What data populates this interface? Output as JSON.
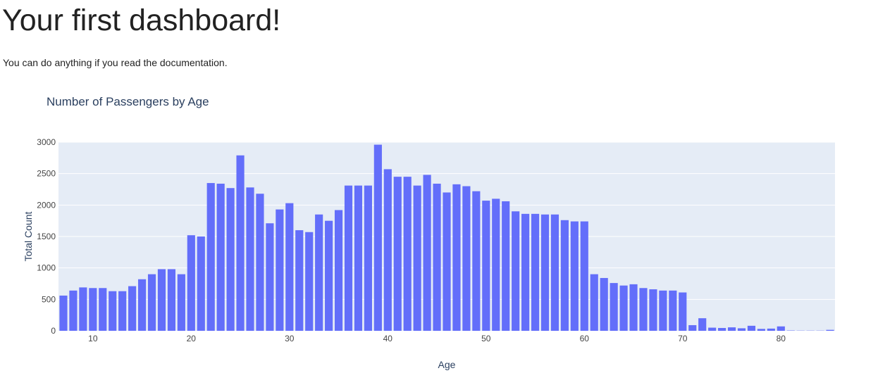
{
  "page": {
    "title": "Your first dashboard!",
    "subtitle": "You can do anything if you read the documentation."
  },
  "colors": {
    "bar": "#636efa",
    "plot_bg": "#e5ecf6",
    "grid": "#ffffff",
    "text": "#2a3f5f",
    "tick_text": "#444444"
  },
  "chart_data": {
    "type": "bar",
    "title": "Number of Passengers by Age",
    "xlabel": "Age",
    "ylabel": "Total Count",
    "xlim": [
      6.5,
      85.5
    ],
    "ylim": [
      0,
      3000
    ],
    "xticks": [
      10,
      20,
      30,
      40,
      50,
      60,
      70,
      80
    ],
    "yticks": [
      0,
      500,
      1000,
      1500,
      2000,
      2500,
      3000
    ],
    "grid": true,
    "x": [
      7,
      8,
      9,
      10,
      11,
      12,
      13,
      14,
      15,
      16,
      17,
      18,
      19,
      20,
      21,
      22,
      23,
      24,
      25,
      26,
      27,
      28,
      29,
      30,
      31,
      32,
      33,
      34,
      35,
      36,
      37,
      38,
      39,
      40,
      41,
      42,
      43,
      44,
      45,
      46,
      47,
      48,
      49,
      50,
      51,
      52,
      53,
      54,
      55,
      56,
      57,
      58,
      59,
      60,
      61,
      62,
      63,
      64,
      65,
      66,
      67,
      68,
      69,
      70,
      71,
      72,
      73,
      74,
      75,
      76,
      77,
      78,
      79,
      80,
      81,
      82,
      83,
      84,
      85
    ],
    "values": [
      560,
      640,
      690,
      680,
      680,
      630,
      630,
      710,
      820,
      900,
      980,
      980,
      900,
      1520,
      1500,
      2350,
      2340,
      2270,
      2790,
      2280,
      2180,
      1710,
      1930,
      2030,
      1600,
      1570,
      1850,
      1750,
      1920,
      2310,
      2310,
      2310,
      2960,
      2570,
      2450,
      2450,
      2310,
      2480,
      2340,
      2200,
      2330,
      2300,
      2220,
      2070,
      2100,
      2060,
      1900,
      1860,
      1860,
      1850,
      1850,
      1760,
      1740,
      1740,
      900,
      840,
      760,
      720,
      740,
      680,
      660,
      640,
      640,
      610,
      90,
      200,
      50,
      45,
      55,
      40,
      80,
      30,
      35,
      70,
      5,
      3,
      3,
      3,
      15
    ]
  }
}
